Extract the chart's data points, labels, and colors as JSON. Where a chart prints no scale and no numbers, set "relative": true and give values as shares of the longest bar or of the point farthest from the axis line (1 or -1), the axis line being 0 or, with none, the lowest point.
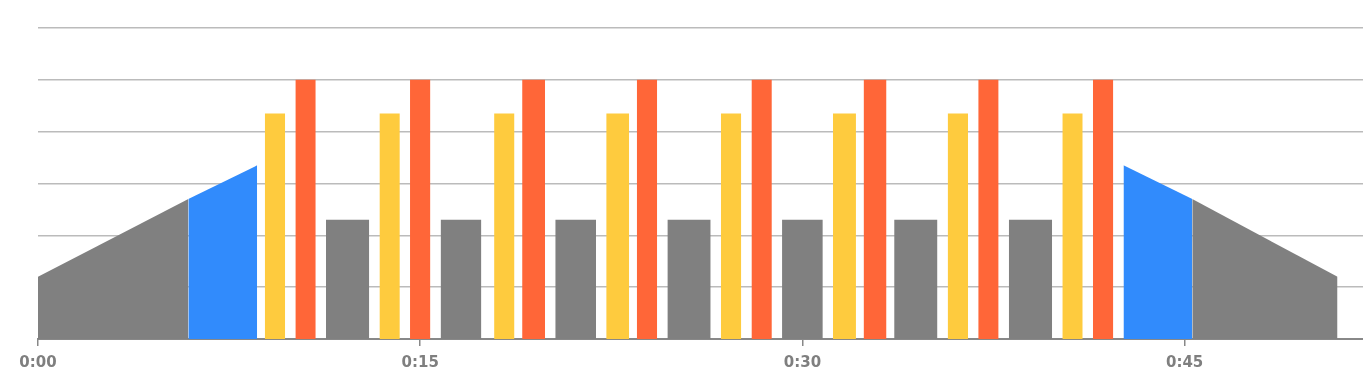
{
  "chart_data": {
    "type": "area",
    "relative": true,
    "grid": "y",
    "legend": false,
    "marker": "none",
    "xlim": [
      0,
      52
    ],
    "xticks": [
      {
        "value": 0,
        "label": "0:00"
      },
      {
        "value": 15,
        "label": "0:15"
      },
      {
        "value": 30,
        "label": "0:30"
      },
      {
        "value": 45,
        "label": "0:45"
      }
    ],
    "series": [
      {
        "color": "#808080",
        "x": [
          0,
          5.9,
          8.0,
          11.3,
          13.0,
          14.0,
          15.8,
          17.4,
          18.0,
          20.3,
          21.9,
          22.0,
          24.7,
          26.4,
          27.0,
          29.2,
          30.8,
          31.0,
          33.6,
          35.3,
          36.0,
          38.1,
          39.8,
          42.0,
          45.3,
          51.0
        ],
        "values": [
          0.24,
          0.54,
          null,
          0.46,
          0.46,
          null,
          0.46,
          0.46,
          null,
          0.46,
          0.46,
          null,
          0.46,
          0.46,
          null,
          0.46,
          0.46,
          null,
          0.46,
          0.46,
          null,
          0.46,
          0.46,
          null,
          0.54,
          0.24
        ]
      },
      {
        "color": "#318bfc",
        "x": [
          5.9,
          8.6,
          20.0,
          42.6,
          45.3
        ],
        "values": [
          0.54,
          0.67,
          null,
          0.67,
          0.54
        ]
      },
      {
        "color": "#fecb3e",
        "x": [
          8.9,
          9.7,
          11.0,
          13.4,
          14.2,
          16.0,
          17.9,
          18.7,
          20.0,
          22.3,
          23.2,
          25.0,
          26.8,
          27.6,
          29.0,
          31.2,
          32.1,
          34.0,
          35.7,
          36.5,
          38.0,
          40.2,
          41.0
        ],
        "values": [
          0.87,
          0.87,
          null,
          0.87,
          0.87,
          null,
          0.87,
          0.87,
          null,
          0.87,
          0.87,
          null,
          0.87,
          0.87,
          null,
          0.87,
          0.87,
          null,
          0.87,
          0.87,
          null,
          0.87,
          0.87
        ]
      },
      {
        "color": "#ff6638",
        "x": [
          10.1,
          10.9,
          12.0,
          14.6,
          15.4,
          17.0,
          19.0,
          19.9,
          21.0,
          23.5,
          24.3,
          26.0,
          28.0,
          28.8,
          30.0,
          32.4,
          33.3,
          35.0,
          36.9,
          37.7,
          39.0,
          41.4,
          42.2
        ],
        "values": [
          1,
          1,
          null,
          1,
          1,
          null,
          1,
          1,
          null,
          1,
          1,
          null,
          1,
          1,
          null,
          1,
          1,
          null,
          1,
          1,
          null,
          1,
          1
        ]
      }
    ]
  }
}
